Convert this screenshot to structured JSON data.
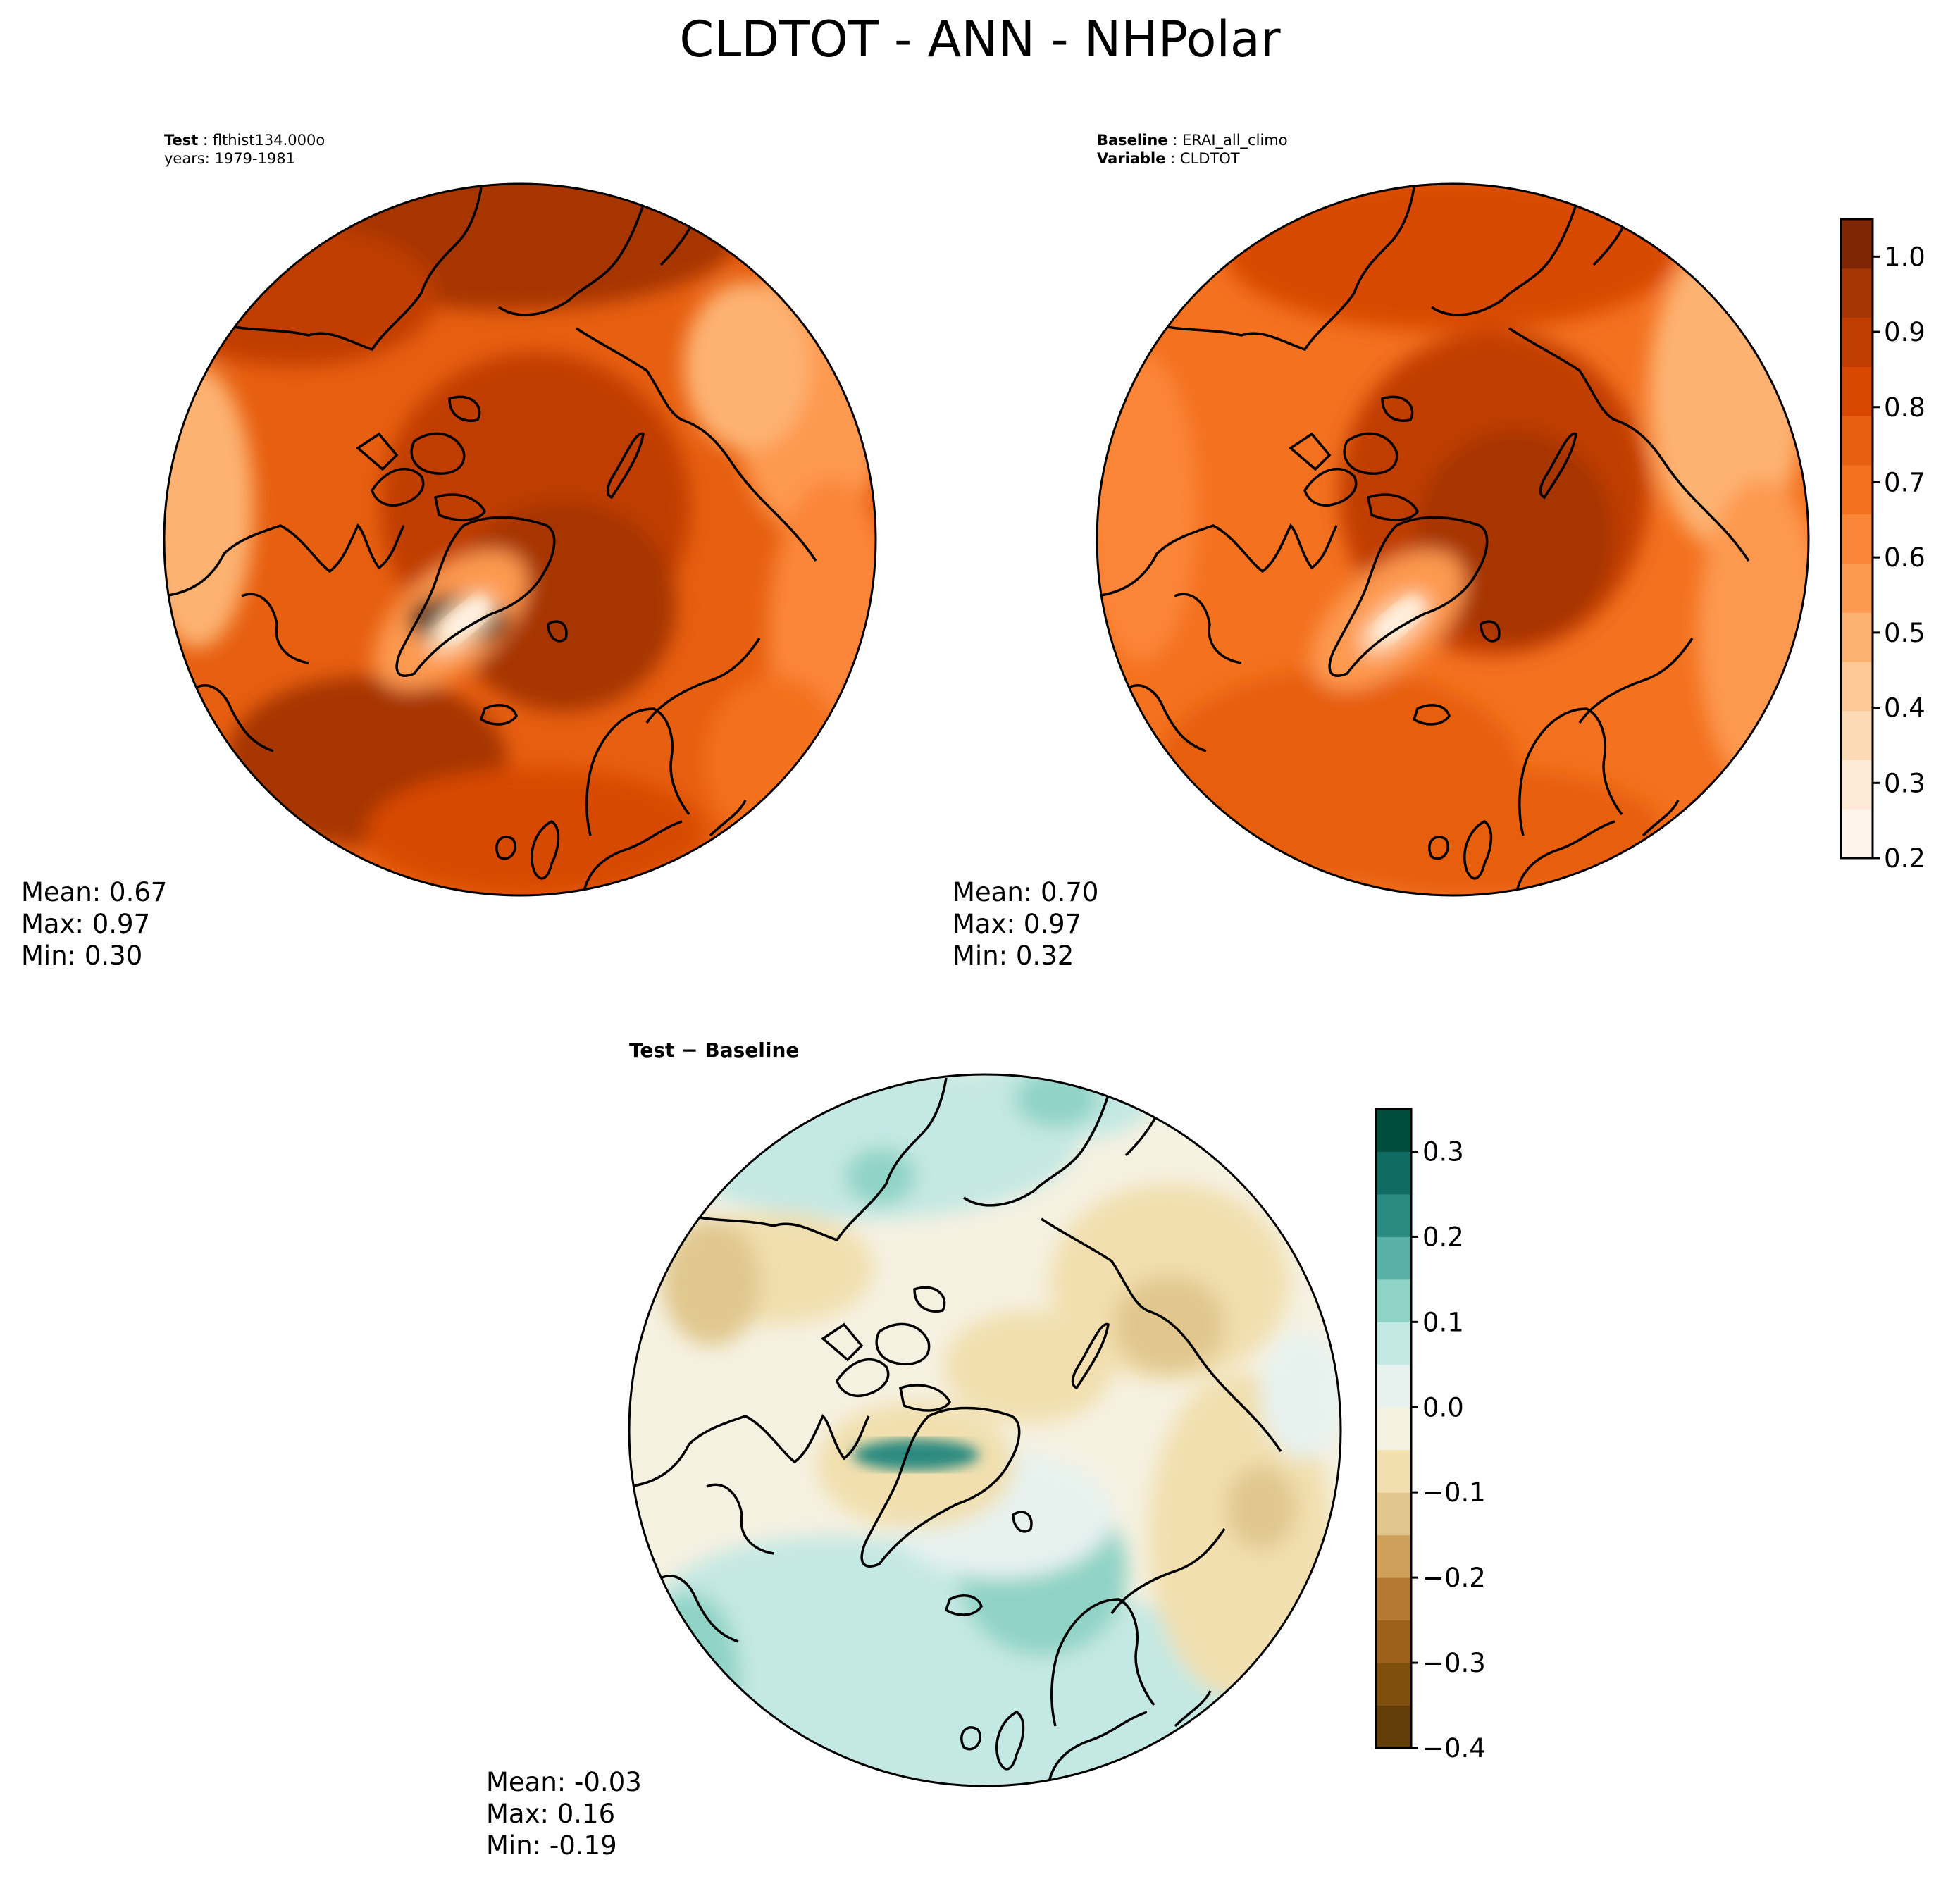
{
  "title": "CLDTOT - ANN - NHPolar",
  "panels": {
    "test": {
      "header_label_bold": "Test",
      "header_label_value": "flthist134.000o",
      "header_line2": "years: 1979-1981",
      "stats": {
        "mean": "Mean:  0.67",
        "max": "Max:  0.97",
        "min": "Min:  0.30"
      }
    },
    "baseline": {
      "header_label_bold": "Baseline",
      "header_label_value": "ERAI_all_climo",
      "header_line2_bold": "Variable",
      "header_line2_value": "CLDTOT",
      "stats": {
        "mean": "Mean:  0.70",
        "max": "Max:  0.97",
        "min": "Min:  0.32"
      }
    },
    "diff": {
      "header": "Test − Baseline",
      "stats": {
        "mean": "Mean: -0.03",
        "max": "Max:  0.16",
        "min": "Min: -0.19"
      }
    }
  },
  "colorbars": {
    "main": {
      "cmap": "Oranges",
      "colors": [
        "#fff5eb",
        "#feead6",
        "#fddab6",
        "#fdc895",
        "#fdb272",
        "#fd9950",
        "#fb8537",
        "#f3711f",
        "#e75f10",
        "#d84801",
        "#c03d02",
        "#a63603",
        "#7f2704"
      ],
      "ticks": [
        "0.2",
        "0.3",
        "0.4",
        "0.5",
        "0.6",
        "0.7",
        "0.8",
        "0.9",
        "1.0"
      ],
      "range": [
        0.2,
        1.05
      ]
    },
    "diff": {
      "cmap": "BrBG",
      "colors": [
        "#633d07",
        "#7e4f0d",
        "#9c621a",
        "#b47a31",
        "#cfa05a",
        "#e1c78e",
        "#f1dfaf",
        "#f5f1e1",
        "#e7f2ef",
        "#c4e8e3",
        "#8fd3c6",
        "#58b0a7",
        "#2b8a80",
        "#0e6c63",
        "#004d3e"
      ],
      "ticks": [
        "−0.4",
        "−0.3",
        "−0.2",
        "−0.1",
        "0.0",
        "0.1",
        "0.2",
        "0.3"
      ],
      "range": [
        -0.4,
        0.35
      ]
    }
  }
}
